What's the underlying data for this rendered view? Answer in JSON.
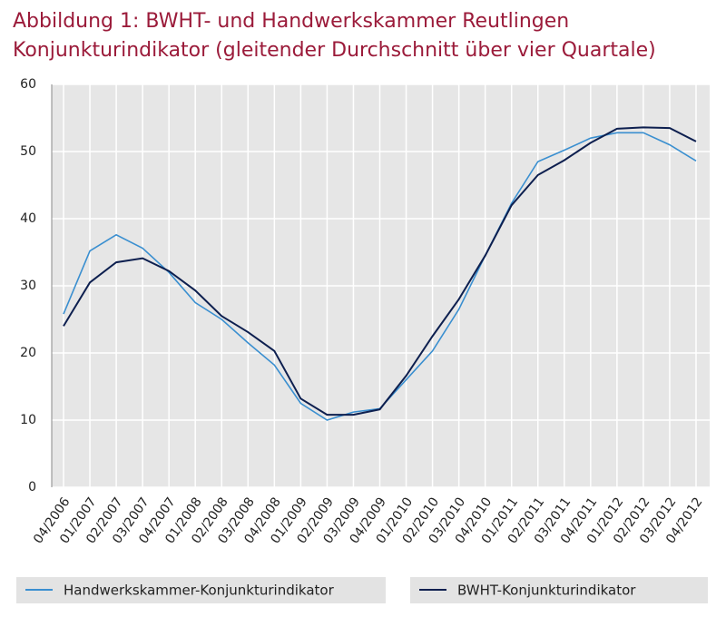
{
  "chart_data": {
    "type": "line",
    "title": [
      "Abbildung 1: BWHT- und Handwerkskammer  Reutlingen",
      "Konjunkturindikator (gleitender Durchschnitt über vier Quartale)"
    ],
    "categories": [
      "04/2006",
      "01/2007",
      "02/2007",
      "03/2007",
      "04/2007",
      "01/2008",
      "02/2008",
      "03/2008",
      "04/2008",
      "01/2009",
      "02/2009",
      "03/2009",
      "04/2009",
      "01/2010",
      "02/2010",
      "03/2010",
      "04/2010",
      "01/2011",
      "02/2011",
      "03/2011",
      "04/2011",
      "01/2012",
      "02/2012",
      "03/2012",
      "04/2012"
    ],
    "series": [
      {
        "name": "Handwerkskammer-Konjunkturindikator",
        "color": "#3a8fd0",
        "values": [
          25.8,
          35.2,
          37.6,
          35.6,
          32,
          27.5,
          25,
          21.5,
          18.2,
          12.5,
          10,
          11.2,
          11.7,
          16,
          20.3,
          26.5,
          34.5,
          42.3,
          48.5,
          50.2,
          52,
          52.8,
          52.8,
          51,
          48.6
        ]
      },
      {
        "name": "BWHT-Konjunkturindikator",
        "color": "#0d1f4f",
        "values": [
          24,
          30.5,
          33.5,
          34.1,
          32.2,
          29.3,
          25.5,
          23.1,
          20.3,
          13.2,
          10.8,
          10.8,
          11.6,
          16.6,
          22.5,
          28,
          34.5,
          42,
          46.5,
          48.7,
          51.3,
          53.4,
          53.6,
          53.5,
          51.5
        ]
      }
    ],
    "ylim": [
      0,
      60
    ],
    "yticks": [
      0,
      10,
      20,
      30,
      40,
      50,
      60
    ],
    "grid": true
  }
}
